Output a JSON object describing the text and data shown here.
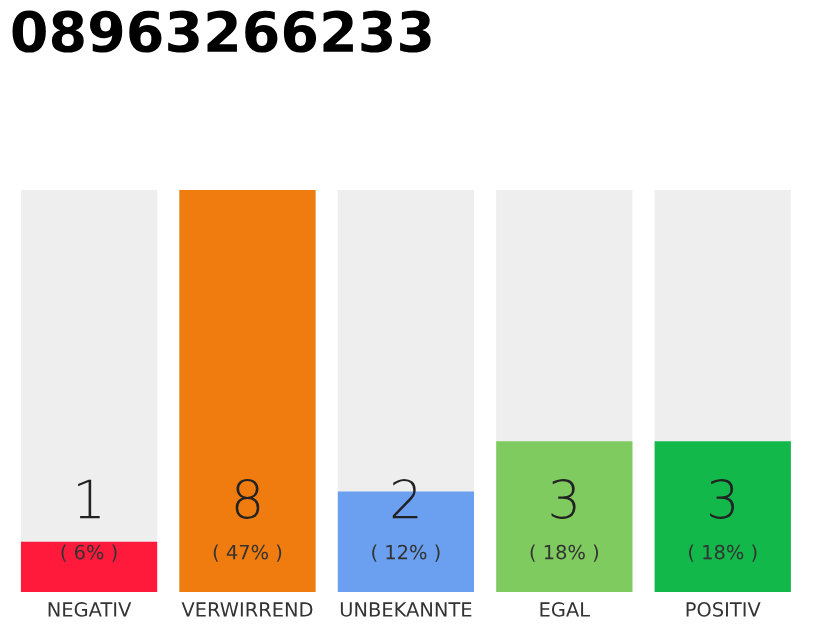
{
  "chart_data": {
    "type": "bar",
    "title": "08963266233",
    "categories": [
      "NEGATIV",
      "VERWIRREND",
      "UNBEKANNTE",
      "EGAL",
      "POSITIV"
    ],
    "values": [
      1,
      8,
      2,
      3,
      3
    ],
    "colors": [
      "#ff1a3c",
      "#f07c0f",
      "#6aa0ef",
      "#7fcb5f",
      "#12b84a"
    ],
    "value_labels": [
      "1\n( 6% )",
      "8\n( 47% )",
      "2\n( 12% )",
      "3\n( 18% )",
      "3\n( 18% )"
    ],
    "tick_labels": "x",
    "grid": false,
    "legend": false
  }
}
